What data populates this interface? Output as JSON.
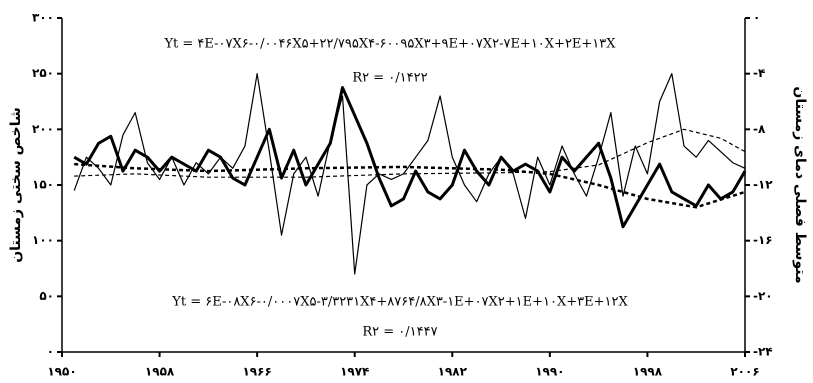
{
  "chart_data": {
    "type": "line",
    "y_label": "شاخص سختی زمستان",
    "y2_label": "متوسط فصلی دمای زمستان",
    "annotations": [
      "Yt = ۴E-۰۷X۶-۰/۰۰۴۶X۵+۲۲/۷۹۵X۴-۶۰۰۹۵X۳+۹E+۰۷X۲-۷E+۱۰X+۲E+۱۳X",
      "R۲ = ۰/۱۴۲۲",
      "Yt = ۶E-۰۸X۶-۰/۰۰۰۷X۵-۳/۳۲۳۱X۴+۸۷۶۴/۸X۳-۱E+۰۷X۲+۱E+۱۰X+۳E+۱۲X",
      "R۲ = ۰/۱۴۴۷"
    ],
    "x": [
      1951,
      1952,
      1953,
      1954,
      1955,
      1956,
      1957,
      1958,
      1959,
      1960,
      1961,
      1962,
      1963,
      1964,
      1965,
      1966,
      1967,
      1968,
      1969,
      1970,
      1971,
      1972,
      1973,
      1974,
      1975,
      1976,
      1977,
      1978,
      1979,
      1980,
      1981,
      1982,
      1983,
      1984,
      1985,
      1986,
      1987,
      1988,
      1989,
      1990,
      1991,
      1992,
      1993,
      1994,
      1995,
      1996,
      1997,
      1998,
      1999,
      2000,
      2001,
      2002,
      2003,
      2004,
      2005,
      2006
    ],
    "series": [
      {
        "color": "#000000",
        "width": 1.2,
        "dash": false,
        "values": [
          145,
          175,
          165,
          150,
          195,
          215,
          170,
          155,
          175,
          150,
          170,
          160,
          175,
          165,
          185,
          250,
          180,
          105,
          160,
          175,
          140,
          190,
          230,
          70,
          150,
          160,
          155,
          160,
          175,
          190,
          230,
          175,
          150,
          135,
          160,
          175,
          160,
          120,
          175,
          150,
          185,
          160,
          140,
          175,
          215,
          140,
          185,
          160,
          225,
          250,
          185,
          175,
          190,
          180,
          170,
          165
        ]
      },
      {
        "color": "#000000",
        "width": 3,
        "dash": false,
        "axis": "y2",
        "values": [
          -10,
          -10.5,
          -9,
          -8.5,
          -11,
          -9.5,
          -10,
          -11,
          -10,
          -10.5,
          -11,
          -9.5,
          -10,
          -11.5,
          -12,
          -10,
          -8,
          -11.5,
          -9.5,
          -12,
          -10.5,
          -9,
          -5,
          -7,
          -9,
          -11.5,
          -13.5,
          -13,
          -11,
          -12.5,
          -13,
          -12,
          -9.5,
          -11,
          -12,
          -10,
          -11,
          -10.5,
          -11,
          -12.5,
          -10,
          -11,
          -10,
          -9,
          -11.5,
          -15,
          -13.5,
          -12,
          -10.5,
          -12.5,
          -13,
          -13.5,
          -12,
          -13,
          -12.5,
          -11
        ]
      },
      {
        "color": "#000000",
        "width": 1.2,
        "dash": true,
        "x": [
          1951,
          1956,
          1962,
          1970,
          1978,
          1986,
          1990,
          1994,
          1998,
          2001,
          2004,
          2006
        ],
        "values": [
          158,
          160,
          157,
          157,
          160,
          161,
          162,
          168,
          188,
          200,
          192,
          180
        ]
      },
      {
        "color": "#000000",
        "width": 2.5,
        "dash": true,
        "axis": "y2",
        "x": [
          1951,
          1956,
          1962,
          1970,
          1978,
          1986,
          1990,
          1994,
          1998,
          2002,
          2006
        ],
        "values": [
          -10.5,
          -10.8,
          -11,
          -10.8,
          -10.7,
          -10.9,
          -11.2,
          -12,
          -13,
          -13.6,
          -12.5
        ]
      }
    ],
    "xlim": [
      1950,
      2006
    ],
    "xticks": [
      {
        "value": 1950,
        "label": "۱۹۵۰"
      },
      {
        "value": 1958,
        "label": "۱۹۵۸"
      },
      {
        "value": 1966,
        "label": "۱۹۶۶"
      },
      {
        "value": 1974,
        "label": "۱۹۷۴"
      },
      {
        "value": 1982,
        "label": "۱۹۸۲"
      },
      {
        "value": 1990,
        "label": "۱۹۹۰"
      },
      {
        "value": 1998,
        "label": "۱۹۹۸"
      },
      {
        "value": 2006,
        "label": "۲۰۰۶"
      }
    ],
    "ylim": [
      0,
      300
    ],
    "yticks": [
      {
        "value": 0,
        "label": "۰"
      },
      {
        "value": 50,
        "label": "۵۰"
      },
      {
        "value": 100,
        "label": "۱۰۰"
      },
      {
        "value": 150,
        "label": "۱۵۰"
      },
      {
        "value": 200,
        "label": "۲۰۰"
      },
      {
        "value": 250,
        "label": "۲۵۰"
      },
      {
        "value": 300,
        "label": "۳۰۰"
      }
    ],
    "y2lim": [
      -24,
      0
    ],
    "y2ticks": [
      {
        "value": 0,
        "label": "۰"
      },
      {
        "value": -4,
        "label": "-۴"
      },
      {
        "value": -8,
        "label": "-۸"
      },
      {
        "value": -12,
        "label": "-۱۲"
      },
      {
        "value": -16,
        "label": "-۱۶"
      },
      {
        "value": -20,
        "label": "-۲۰"
      },
      {
        "value": -24,
        "label": "-۲۴"
      }
    ]
  }
}
